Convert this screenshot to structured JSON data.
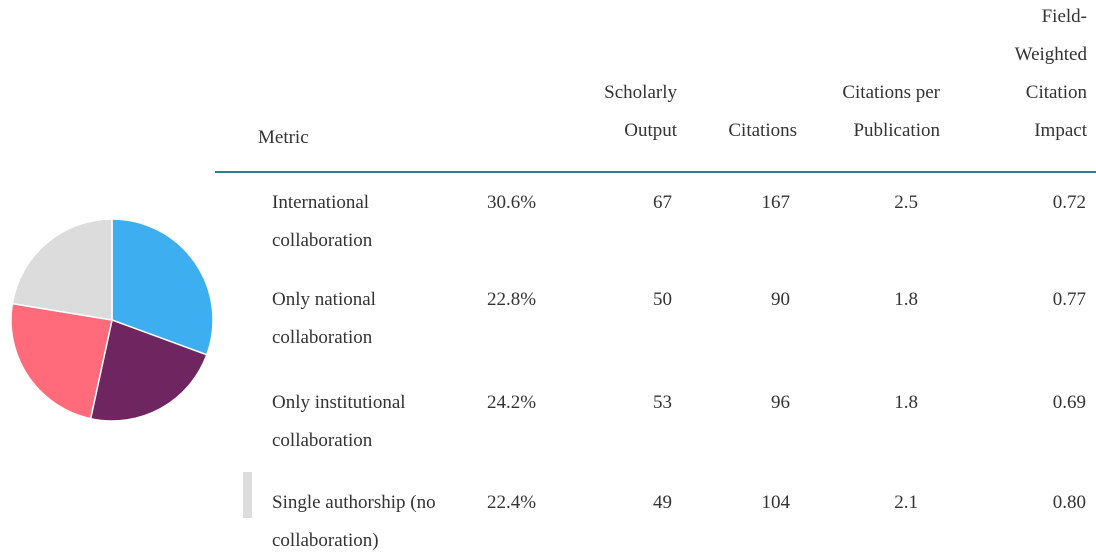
{
  "table": {
    "header": {
      "metric": "Metric",
      "output": "Scholarly Output",
      "citations": "Citations",
      "cpp": "Citations per Publication",
      "fwci": "Field-Weighted Citation Impact"
    },
    "rows": [
      {
        "metric": "International collaboration",
        "share": 30.6,
        "share_label": "30.6%",
        "output": 67,
        "citations": 167,
        "cpp": 2.5,
        "fwci": 0.72,
        "color": "#3daef0"
      },
      {
        "metric": "Only national collaboration",
        "share": 22.8,
        "share_label": "22.8%",
        "output": 50,
        "citations": 90,
        "cpp": 1.8,
        "fwci": 0.77,
        "color": "#6e2560"
      },
      {
        "metric": "Only institutional collaboration",
        "share": 24.2,
        "share_label": "24.2%",
        "output": 53,
        "citations": 96,
        "cpp": 1.8,
        "fwci": 0.69,
        "color": "#ff6b7a"
      },
      {
        "metric": "Single authorship (no collaboration)",
        "share": 22.4,
        "share_label": "22.4%",
        "output": 49,
        "citations": 104,
        "cpp": 2.1,
        "fwci": "0.80",
        "color": "#dcdcdc"
      }
    ]
  }
}
